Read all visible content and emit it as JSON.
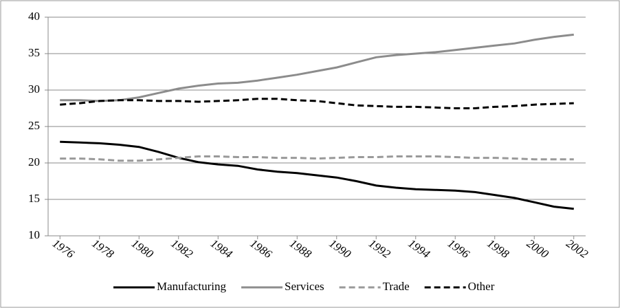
{
  "chart_data": {
    "type": "line",
    "x": [
      1976,
      1977,
      1978,
      1979,
      1980,
      1981,
      1982,
      1983,
      1984,
      1985,
      1986,
      1987,
      1988,
      1989,
      1990,
      1991,
      1992,
      1993,
      1994,
      1995,
      1996,
      1997,
      1998,
      1999,
      2000,
      2001,
      2002
    ],
    "xlim": [
      1975.4,
      2002.6
    ],
    "xticks": [
      1976,
      1978,
      1980,
      1982,
      1984,
      1986,
      1988,
      1990,
      1992,
      1994,
      1996,
      1998,
      2000,
      2002
    ],
    "ylim": [
      10,
      40
    ],
    "yticks": [
      10,
      15,
      20,
      25,
      30,
      35,
      40
    ],
    "grid": true,
    "legend": "bottom",
    "series": [
      {
        "name": "Manufacturing",
        "color": "#000000",
        "dash": false,
        "values": [
          22.9,
          22.8,
          22.7,
          22.5,
          22.2,
          21.5,
          20.7,
          20.1,
          19.8,
          19.6,
          19.1,
          18.8,
          18.6,
          18.3,
          18.0,
          17.5,
          16.9,
          16.6,
          16.4,
          16.3,
          16.2,
          16.0,
          15.6,
          15.2,
          14.6,
          14.0,
          13.7
        ]
      },
      {
        "name": "Services",
        "color": "#8c8c8c",
        "dash": false,
        "values": [
          28.6,
          28.6,
          28.5,
          28.6,
          29.0,
          29.6,
          30.2,
          30.6,
          30.9,
          31.0,
          31.3,
          31.7,
          32.1,
          32.6,
          33.1,
          33.8,
          34.5,
          34.8,
          35.0,
          35.2,
          35.5,
          35.8,
          36.1,
          36.4,
          36.9,
          37.3,
          37.6
        ]
      },
      {
        "name": "Trade",
        "color": "#999999",
        "dash": true,
        "values": [
          20.6,
          20.6,
          20.5,
          20.3,
          20.3,
          20.5,
          20.7,
          20.9,
          20.9,
          20.8,
          20.8,
          20.7,
          20.7,
          20.6,
          20.7,
          20.8,
          20.8,
          20.9,
          20.9,
          20.9,
          20.8,
          20.7,
          20.7,
          20.6,
          20.5,
          20.5,
          20.5
        ]
      },
      {
        "name": "Other",
        "color": "#000000",
        "dash": true,
        "values": [
          28.0,
          28.2,
          28.5,
          28.6,
          28.6,
          28.5,
          28.5,
          28.4,
          28.5,
          28.6,
          28.8,
          28.8,
          28.6,
          28.5,
          28.2,
          27.9,
          27.8,
          27.7,
          27.7,
          27.6,
          27.5,
          27.5,
          27.7,
          27.8,
          28.0,
          28.1,
          28.2
        ]
      }
    ]
  }
}
